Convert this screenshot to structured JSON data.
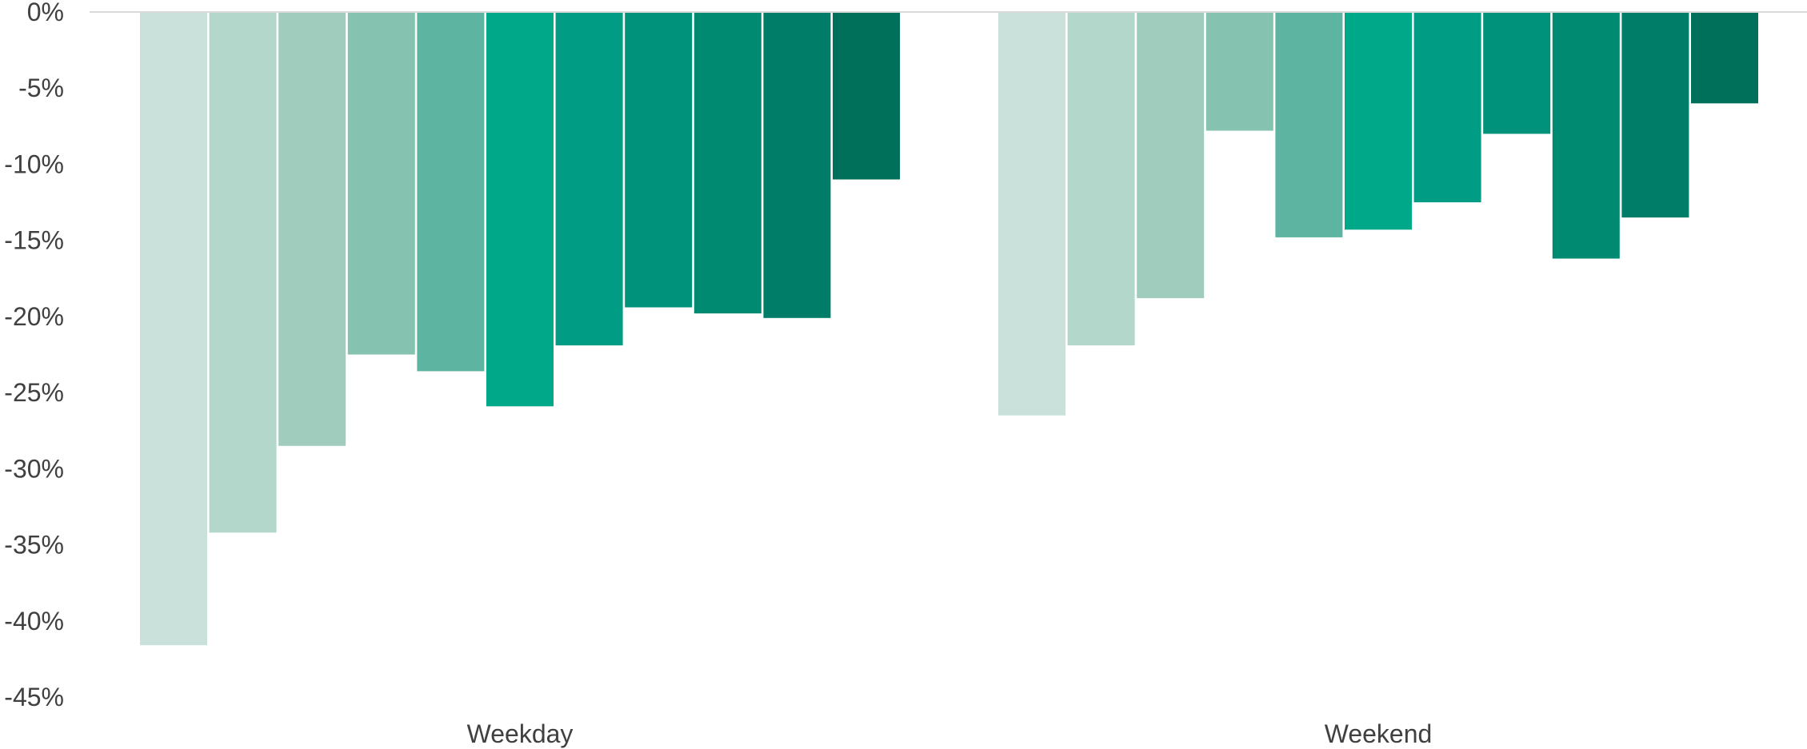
{
  "chart_data": {
    "type": "bar",
    "orientation": "vertical",
    "title": "",
    "xlabel": "",
    "ylabel": "",
    "categories": [
      "Weekday",
      "Weekend"
    ],
    "ylim": [
      -45,
      0
    ],
    "y_ticks": [
      0,
      -5,
      -10,
      -15,
      -20,
      -25,
      -30,
      -35,
      -40,
      -45
    ],
    "y_tick_labels": [
      "0%",
      "-5%",
      "-10%",
      "-15%",
      "-20%",
      "-25%",
      "-30%",
      "-35%",
      "-40%",
      "-45%"
    ],
    "grid": false,
    "legend": "none",
    "series": [
      {
        "color": "#c9e1da",
        "values": [
          -41.6,
          -26.5
        ]
      },
      {
        "color": "#b4d7cc",
        "values": [
          -34.2,
          -21.9
        ]
      },
      {
        "color": "#9fccbd",
        "values": [
          -28.5,
          -18.8
        ]
      },
      {
        "color": "#85c2b0",
        "values": [
          -22.5,
          -7.8
        ]
      },
      {
        "color": "#5db4a0",
        "values": [
          -23.6,
          -14.8
        ]
      },
      {
        "color": "#00a88a",
        "values": [
          -25.9,
          -14.3
        ]
      },
      {
        "color": "#009d84",
        "values": [
          -21.9,
          -12.5
        ]
      },
      {
        "color": "#00927a",
        "values": [
          -19.4,
          -8.0
        ]
      },
      {
        "color": "#008a72",
        "values": [
          -19.8,
          -16.2
        ]
      },
      {
        "color": "#007d68",
        "values": [
          -20.1,
          -13.5
        ]
      },
      {
        "color": "#00705a",
        "values": [
          -11.0,
          -6.0
        ]
      }
    ]
  }
}
